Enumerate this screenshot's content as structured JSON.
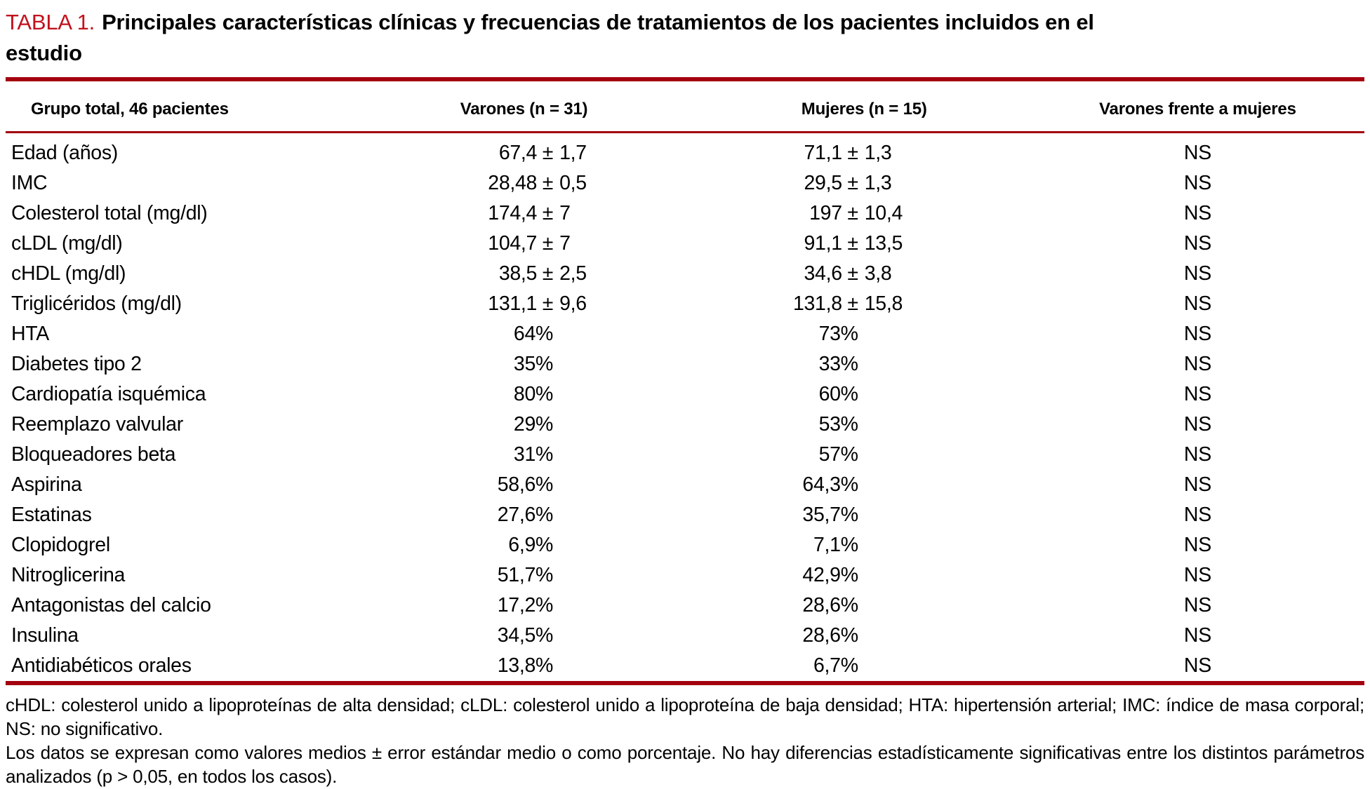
{
  "title": {
    "label": "TABLA 1.",
    "caption": "Principales características clínicas y frecuencias de tratamientos de los pacientes incluidos en el estudio"
  },
  "colors": {
    "accent_red": "#c1121d",
    "rule_red": "#a40010",
    "text": "#000000",
    "background": "#ffffff"
  },
  "table": {
    "columns": [
      "Grupo total, 46 pacientes",
      "Varones (n = 31)",
      "Mujeres (n = 15)",
      "Varones frente a mujeres"
    ],
    "rows": [
      {
        "label": "Edad (años)",
        "varones": "67,4 ± 1,7",
        "mujeres": "71,1 ± 1,3",
        "comparacion": "NS"
      },
      {
        "label": "IMC",
        "varones": "28,48 ± 0,5",
        "mujeres": "29,5 ± 1,3",
        "comparacion": "NS"
      },
      {
        "label": "Colesterol total (mg/dl)",
        "varones": "174,4 ± 7",
        "mujeres": "197 ± 10,4",
        "comparacion": "NS"
      },
      {
        "label": "cLDL (mg/dl)",
        "varones": "104,7 ± 7",
        "mujeres": "91,1 ± 13,5",
        "comparacion": "NS"
      },
      {
        "label": "cHDL (mg/dl)",
        "varones": "38,5 ± 2,5",
        "mujeres": "34,6 ± 3,8",
        "comparacion": "NS"
      },
      {
        "label": "Triglicéridos (mg/dl)",
        "varones": "131,1 ± 9,6",
        "mujeres": "131,8 ± 15,8",
        "comparacion": "NS"
      },
      {
        "label": "HTA",
        "varones": "64%",
        "mujeres": "73%",
        "comparacion": "NS"
      },
      {
        "label": "Diabetes tipo 2",
        "varones": "35%",
        "mujeres": "33%",
        "comparacion": "NS"
      },
      {
        "label": "Cardiopatía isquémica",
        "varones": "80%",
        "mujeres": "60%",
        "comparacion": "NS"
      },
      {
        "label": "Reemplazo valvular",
        "varones": "29%",
        "mujeres": "53%",
        "comparacion": "NS"
      },
      {
        "label": "Bloqueadores beta",
        "varones": "31%",
        "mujeres": "57%",
        "comparacion": "NS"
      },
      {
        "label": "Aspirina",
        "varones": "58,6%",
        "mujeres": "64,3%",
        "comparacion": "NS"
      },
      {
        "label": "Estatinas",
        "varones": "27,6%",
        "mujeres": "35,7%",
        "comparacion": "NS"
      },
      {
        "label": "Clopidogrel",
        "varones": "6,9%",
        "mujeres": "7,1%",
        "comparacion": "NS"
      },
      {
        "label": "Nitroglicerina",
        "varones": "51,7%",
        "mujeres": "42,9%",
        "comparacion": "NS"
      },
      {
        "label": "Antagonistas del calcio",
        "varones": "17,2%",
        "mujeres": "28,6%",
        "comparacion": "NS"
      },
      {
        "label": "Insulina",
        "varones": "34,5%",
        "mujeres": "28,6%",
        "comparacion": "NS"
      },
      {
        "label": "Antidiabéticos orales",
        "varones": "13,8%",
        "mujeres": "6,7%",
        "comparacion": "NS"
      }
    ]
  },
  "footnotes": {
    "abbreviations": "cHDL: colesterol unido a lipoproteínas de alta densidad; cLDL: colesterol unido a lipoproteína de baja densidad; HTA: hipertensión arterial; IMC: índice de masa corporal; NS: no significativo.",
    "note": "Los datos se expresan como valores medios ± error estándar medio o como porcentaje. No hay diferencias estadísticamente significativas entre los distintos parámetros analizados (p > 0,05, en todos los casos)."
  }
}
